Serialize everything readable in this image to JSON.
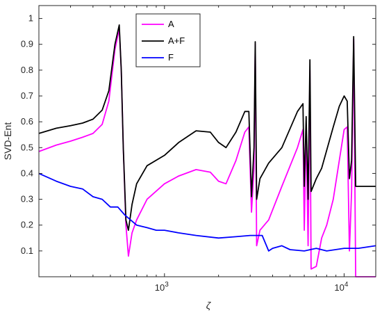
{
  "chart_data": {
    "type": "line",
    "xlabel": "ζ",
    "ylabel": "SVD-Ent",
    "xscale": "log",
    "xlim": [
      200,
      15000
    ],
    "ylim": [
      0,
      1.05
    ],
    "grid": false,
    "legend_position": "top-center",
    "x_ticks": [
      {
        "value": 1000,
        "label": "10",
        "exp": "3"
      },
      {
        "value": 10000,
        "label": "10",
        "exp": "4"
      }
    ],
    "y_ticks": [
      {
        "value": 0.1,
        "label": "0.1"
      },
      {
        "value": 0.2,
        "label": "0.2"
      },
      {
        "value": 0.3,
        "label": "0.3"
      },
      {
        "value": 0.4,
        "label": "0.4"
      },
      {
        "value": 0.5,
        "label": "0.5"
      },
      {
        "value": 0.6,
        "label": "0.6"
      },
      {
        "value": 0.7,
        "label": "0.7"
      },
      {
        "value": 0.8,
        "label": "0.8"
      },
      {
        "value": 0.9,
        "label": "0.9"
      },
      {
        "value": 1,
        "label": "1"
      }
    ],
    "series": [
      {
        "name": "A",
        "color": "#ff00ff",
        "points": [
          [
            200,
            0.485
          ],
          [
            250,
            0.51
          ],
          [
            300,
            0.525
          ],
          [
            350,
            0.54
          ],
          [
            400,
            0.555
          ],
          [
            450,
            0.59
          ],
          [
            490,
            0.68
          ],
          [
            530,
            0.88
          ],
          [
            560,
            0.96
          ],
          [
            575,
            0.8
          ],
          [
            590,
            0.5
          ],
          [
            610,
            0.2
          ],
          [
            630,
            0.08
          ],
          [
            660,
            0.17
          ],
          [
            700,
            0.22
          ],
          [
            800,
            0.3
          ],
          [
            1000,
            0.36
          ],
          [
            1200,
            0.39
          ],
          [
            1500,
            0.415
          ],
          [
            1800,
            0.405
          ],
          [
            2000,
            0.37
          ],
          [
            2200,
            0.36
          ],
          [
            2500,
            0.45
          ],
          [
            2800,
            0.56
          ],
          [
            2950,
            0.58
          ],
          [
            3050,
            0.25
          ],
          [
            3150,
            0.42
          ],
          [
            3200,
            0.9
          ],
          [
            3260,
            0.12
          ],
          [
            3400,
            0.18
          ],
          [
            3800,
            0.22
          ],
          [
            4500,
            0.35
          ],
          [
            5500,
            0.5
          ],
          [
            5900,
            0.57
          ],
          [
            6000,
            0.18
          ],
          [
            6150,
            0.58
          ],
          [
            6300,
            0.12
          ],
          [
            6450,
            0.8
          ],
          [
            6550,
            0.03
          ],
          [
            7000,
            0.04
          ],
          [
            7500,
            0.15
          ],
          [
            8000,
            0.2
          ],
          [
            8700,
            0.3
          ],
          [
            9400,
            0.45
          ],
          [
            10000,
            0.57
          ],
          [
            10400,
            0.58
          ],
          [
            10700,
            0.1
          ],
          [
            11000,
            0.33
          ],
          [
            11300,
            0.92
          ],
          [
            11600,
            0.0
          ],
          [
            15000,
            0.0
          ]
        ]
      },
      {
        "name": "A+F",
        "color": "#000000",
        "points": [
          [
            200,
            0.555
          ],
          [
            250,
            0.575
          ],
          [
            300,
            0.585
          ],
          [
            350,
            0.595
          ],
          [
            400,
            0.61
          ],
          [
            450,
            0.645
          ],
          [
            490,
            0.72
          ],
          [
            530,
            0.9
          ],
          [
            560,
            0.975
          ],
          [
            575,
            0.8
          ],
          [
            590,
            0.5
          ],
          [
            610,
            0.22
          ],
          [
            630,
            0.18
          ],
          [
            660,
            0.28
          ],
          [
            700,
            0.36
          ],
          [
            800,
            0.43
          ],
          [
            1000,
            0.47
          ],
          [
            1200,
            0.52
          ],
          [
            1500,
            0.565
          ],
          [
            1800,
            0.56
          ],
          [
            2000,
            0.52
          ],
          [
            2200,
            0.5
          ],
          [
            2500,
            0.56
          ],
          [
            2800,
            0.64
          ],
          [
            2950,
            0.64
          ],
          [
            3050,
            0.31
          ],
          [
            3150,
            0.5
          ],
          [
            3200,
            0.91
          ],
          [
            3260,
            0.3
          ],
          [
            3400,
            0.38
          ],
          [
            3800,
            0.44
          ],
          [
            4500,
            0.5
          ],
          [
            5500,
            0.64
          ],
          [
            5900,
            0.67
          ],
          [
            6000,
            0.35
          ],
          [
            6150,
            0.62
          ],
          [
            6300,
            0.3
          ],
          [
            6450,
            0.84
          ],
          [
            6550,
            0.33
          ],
          [
            7000,
            0.38
          ],
          [
            7500,
            0.42
          ],
          [
            8000,
            0.49
          ],
          [
            8700,
            0.58
          ],
          [
            9400,
            0.66
          ],
          [
            10000,
            0.7
          ],
          [
            10400,
            0.68
          ],
          [
            10700,
            0.38
          ],
          [
            11000,
            0.45
          ],
          [
            11300,
            0.93
          ],
          [
            11600,
            0.35
          ],
          [
            15000,
            0.35
          ]
        ]
      },
      {
        "name": "F",
        "color": "#0000ff",
        "points": [
          [
            200,
            0.4
          ],
          [
            250,
            0.37
          ],
          [
            300,
            0.35
          ],
          [
            350,
            0.34
          ],
          [
            400,
            0.31
          ],
          [
            450,
            0.3
          ],
          [
            500,
            0.27
          ],
          [
            550,
            0.27
          ],
          [
            600,
            0.24
          ],
          [
            700,
            0.2
          ],
          [
            800,
            0.19
          ],
          [
            900,
            0.18
          ],
          [
            1000,
            0.18
          ],
          [
            1200,
            0.17
          ],
          [
            1500,
            0.16
          ],
          [
            2000,
            0.15
          ],
          [
            2500,
            0.155
          ],
          [
            3000,
            0.16
          ],
          [
            3500,
            0.16
          ],
          [
            3800,
            0.1
          ],
          [
            4000,
            0.11
          ],
          [
            4500,
            0.12
          ],
          [
            5000,
            0.105
          ],
          [
            6000,
            0.1
          ],
          [
            7000,
            0.11
          ],
          [
            8000,
            0.1
          ],
          [
            10000,
            0.11
          ],
          [
            12000,
            0.11
          ],
          [
            15000,
            0.12
          ]
        ]
      }
    ]
  }
}
